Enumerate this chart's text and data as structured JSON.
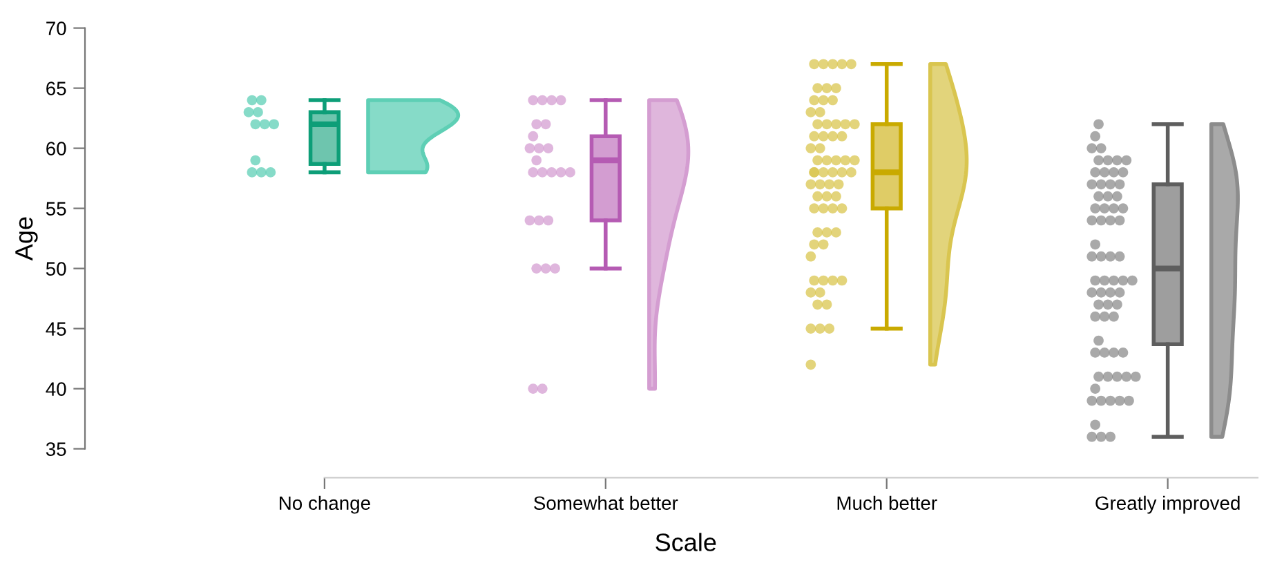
{
  "chart_data": {
    "type": "box",
    "xlabel": "Scale",
    "ylabel": "Age",
    "categories": [
      "No change",
      "Somewhat better",
      "Much better",
      "Greatly improved"
    ],
    "ylim": [
      35,
      70
    ],
    "yticks": [
      35,
      40,
      45,
      50,
      55,
      60,
      65,
      70
    ],
    "grid": false,
    "legend": false,
    "series": [
      {
        "type": "scatter",
        "color": "#5ecfb5",
        "x": [
          "No change",
          "No change",
          "No change",
          "No change",
          "No change",
          "No change",
          "No change",
          "No change",
          "No change",
          "No change",
          "No change"
        ],
        "values": [
          64,
          64,
          63,
          63,
          62,
          62,
          62,
          59,
          58,
          58,
          58
        ]
      },
      {
        "type": "scatter",
        "color": "#d49dd1",
        "x": [
          "Somewhat better",
          "Somewhat better",
          "Somewhat better",
          "Somewhat better",
          "Somewhat better",
          "Somewhat better",
          "Somewhat better",
          "Somewhat better",
          "Somewhat better",
          "Somewhat better",
          "Somewhat better",
          "Somewhat better",
          "Somewhat better",
          "Somewhat better",
          "Somewhat better",
          "Somewhat better",
          "Somewhat better",
          "Somewhat better",
          "Somewhat better",
          "Somewhat better",
          "Somewhat better",
          "Somewhat better",
          "Somewhat better",
          "Somewhat better"
        ],
        "values": [
          64,
          64,
          64,
          64,
          62,
          62,
          61,
          60,
          60,
          60,
          59,
          58,
          58,
          58,
          58,
          58,
          54,
          54,
          54,
          50,
          50,
          50,
          40,
          40
        ]
      },
      {
        "type": "scatter",
        "color": "#d9c54f",
        "x": [
          "Much better",
          "Much better",
          "Much better",
          "Much better",
          "Much better",
          "Much better",
          "Much better",
          "Much better",
          "Much better",
          "Much better",
          "Much better",
          "Much better",
          "Much better",
          "Much better",
          "Much better",
          "Much better",
          "Much better",
          "Much better",
          "Much better",
          "Much better",
          "Much better",
          "Much better",
          "Much better",
          "Much better",
          "Much better",
          "Much better",
          "Much better",
          "Much better",
          "Much better",
          "Much better",
          "Much better",
          "Much better",
          "Much better",
          "Much better",
          "Much better",
          "Much better",
          "Much better",
          "Much better",
          "Much better",
          "Much better",
          "Much better",
          "Much better",
          "Much better",
          "Much better",
          "Much better",
          "Much better",
          "Much better",
          "Much better",
          "Much better",
          "Much better",
          "Much better",
          "Much better",
          "Much better",
          "Much better",
          "Much better",
          "Much better",
          "Much better",
          "Much better",
          "Much better",
          "Much better",
          "Much better",
          "Much better",
          "Much better",
          "Much better"
        ],
        "values": [
          67,
          67,
          67,
          67,
          67,
          65,
          65,
          65,
          64,
          64,
          64,
          63,
          63,
          62,
          62,
          62,
          62,
          62,
          61,
          61,
          61,
          61,
          60,
          60,
          59,
          59,
          59,
          59,
          59,
          58,
          58,
          58,
          58,
          58,
          58,
          57,
          57,
          57,
          57,
          56,
          56,
          56,
          55,
          55,
          55,
          55,
          53,
          53,
          53,
          52,
          52,
          51,
          49,
          49,
          49,
          49,
          48,
          48,
          47,
          47,
          45,
          45,
          45,
          42
        ]
      },
      {
        "type": "scatter",
        "color": "#8c8c8c",
        "x": [
          "Greatly improved",
          "Greatly improved",
          "Greatly improved",
          "Greatly improved",
          "Greatly improved",
          "Greatly improved",
          "Greatly improved",
          "Greatly improved",
          "Greatly improved",
          "Greatly improved",
          "Greatly improved",
          "Greatly improved",
          "Greatly improved",
          "Greatly improved",
          "Greatly improved",
          "Greatly improved",
          "Greatly improved",
          "Greatly improved",
          "Greatly improved",
          "Greatly improved",
          "Greatly improved",
          "Greatly improved",
          "Greatly improved",
          "Greatly improved",
          "Greatly improved",
          "Greatly improved",
          "Greatly improved",
          "Greatly improved",
          "Greatly improved",
          "Greatly improved",
          "Greatly improved",
          "Greatly improved",
          "Greatly improved",
          "Greatly improved",
          "Greatly improved",
          "Greatly improved",
          "Greatly improved",
          "Greatly improved",
          "Greatly improved",
          "Greatly improved",
          "Greatly improved",
          "Greatly improved",
          "Greatly improved",
          "Greatly improved",
          "Greatly improved",
          "Greatly improved",
          "Greatly improved",
          "Greatly improved",
          "Greatly improved",
          "Greatly improved",
          "Greatly improved",
          "Greatly improved",
          "Greatly improved",
          "Greatly improved",
          "Greatly improved",
          "Greatly improved",
          "Greatly improved",
          "Greatly improved",
          "Greatly improved",
          "Greatly improved",
          "Greatly improved",
          "Greatly improved",
          "Greatly improved",
          "Greatly improved",
          "Greatly improved",
          "Greatly improved",
          "Greatly improved"
        ],
        "values": [
          62,
          61,
          60,
          60,
          59,
          59,
          59,
          59,
          58,
          58,
          58,
          58,
          57,
          57,
          57,
          57,
          56,
          56,
          56,
          55,
          55,
          55,
          55,
          54,
          54,
          54,
          54,
          52,
          51,
          51,
          51,
          51,
          49,
          49,
          49,
          49,
          49,
          48,
          48,
          48,
          48,
          47,
          47,
          47,
          46,
          46,
          46,
          44,
          43,
          43,
          43,
          43,
          41,
          41,
          41,
          41,
          41,
          40,
          39,
          39,
          39,
          39,
          39,
          37,
          36,
          36,
          36
        ]
      },
      {
        "colors": [
          "#0d9e78",
          "#b55bb3",
          "#c9aa00",
          "#5e5e5e"
        ],
        "boxes": [
          {
            "low": 58,
            "q1": 58.7,
            "median": 62,
            "q3": 63,
            "high": 64
          },
          {
            "low": 50,
            "q1": 54,
            "median": 59,
            "q3": 61,
            "high": 64
          },
          {
            "low": 45,
            "q1": 55,
            "median": 58,
            "q3": 62,
            "high": 67
          },
          {
            "low": 36,
            "q1": 43.7,
            "median": 50,
            "q3": 57,
            "high": 62
          }
        ]
      }
    ]
  }
}
